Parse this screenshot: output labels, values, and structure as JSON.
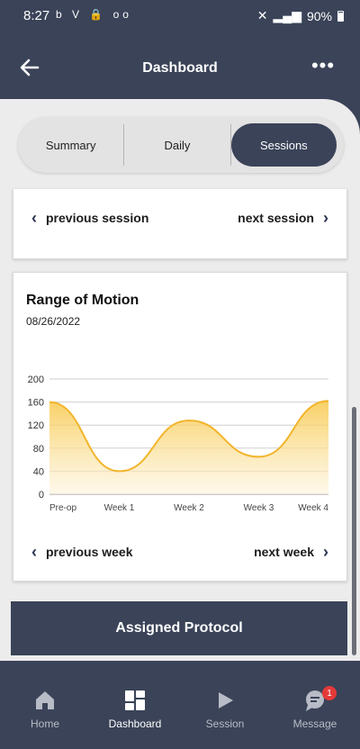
{
  "status_bar": {
    "time": "8:27",
    "left_icons": "b V 🔒 oo",
    "battery": "90%"
  },
  "header": {
    "title": "Dashboard",
    "more": "•••"
  },
  "segments": [
    {
      "label": "Summary",
      "active": false
    },
    {
      "label": "Daily",
      "active": false
    },
    {
      "label": "Sessions",
      "active": true
    }
  ],
  "session_nav": {
    "previous": "previous session",
    "next": "next session"
  },
  "chart_card": {
    "title": "Range of Motion",
    "date": "08/26/2022"
  },
  "week_nav": {
    "previous": "previous week",
    "next": "next week"
  },
  "assigned_protocol": "Assigned Protocol",
  "bottom_nav": [
    {
      "label": "Home",
      "icon": "home-icon",
      "active": false
    },
    {
      "label": "Dashboard",
      "icon": "dashboard-icon",
      "active": true
    },
    {
      "label": "Session",
      "icon": "play-icon",
      "active": false
    },
    {
      "label": "Message",
      "icon": "message-icon",
      "active": false,
      "badge": "1"
    }
  ],
  "colors": {
    "primary": "#3a4358",
    "line": "#f2b52c",
    "fill_top": "#f8c84a",
    "fill_bottom": "#fdf4dc"
  },
  "chart_data": {
    "type": "area",
    "categories": [
      "Pre-op",
      "Week 1",
      "Week 2",
      "Week 3",
      "Week 4"
    ],
    "values": [
      160,
      40,
      128,
      65,
      162
    ],
    "ylim": [
      0,
      200
    ],
    "yticks": [
      0,
      40,
      80,
      120,
      160,
      200
    ],
    "grid": true,
    "title": "",
    "xlabel": "",
    "ylabel": ""
  }
}
